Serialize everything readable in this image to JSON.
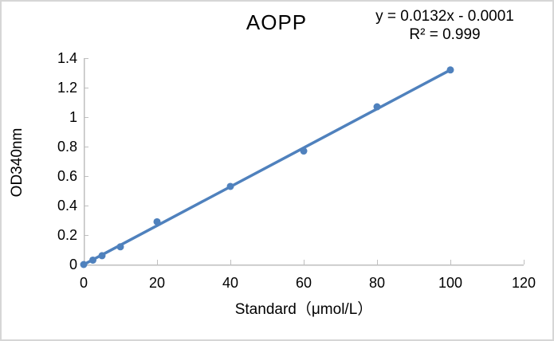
{
  "chart_data": {
    "type": "scatter",
    "title": "AOPP",
    "annotations": {
      "equation": "y = 0.0132x - 0.0001",
      "r_squared": "R² = 0.999"
    },
    "xlabel": "Standard（μmol/L）",
    "ylabel": "OD340nm",
    "xlim": [
      0,
      120
    ],
    "ylim": [
      0,
      1.4
    ],
    "x_ticks": [
      "0",
      "20",
      "40",
      "60",
      "80",
      "100",
      "120"
    ],
    "y_ticks": [
      "0",
      "0.2",
      "0.4",
      "0.6",
      "0.8",
      "1",
      "1.2",
      "1.4"
    ],
    "points": [
      [
        0,
        0.0
      ],
      [
        2.5,
        0.03
      ],
      [
        5,
        0.06
      ],
      [
        10,
        0.12
      ],
      [
        20,
        0.29
      ],
      [
        40,
        0.53
      ],
      [
        60,
        0.77
      ],
      [
        80,
        1.07
      ],
      [
        100,
        1.32
      ]
    ],
    "trendline": {
      "slope": 0.0132,
      "intercept": -0.0001,
      "x_start": 0,
      "x_end": 100
    },
    "legend": "none",
    "grid": false,
    "colors": {
      "series": "#4F81BD",
      "axis": "#BFBFBF",
      "text": "#000000",
      "border": "#D6D6D6"
    }
  }
}
